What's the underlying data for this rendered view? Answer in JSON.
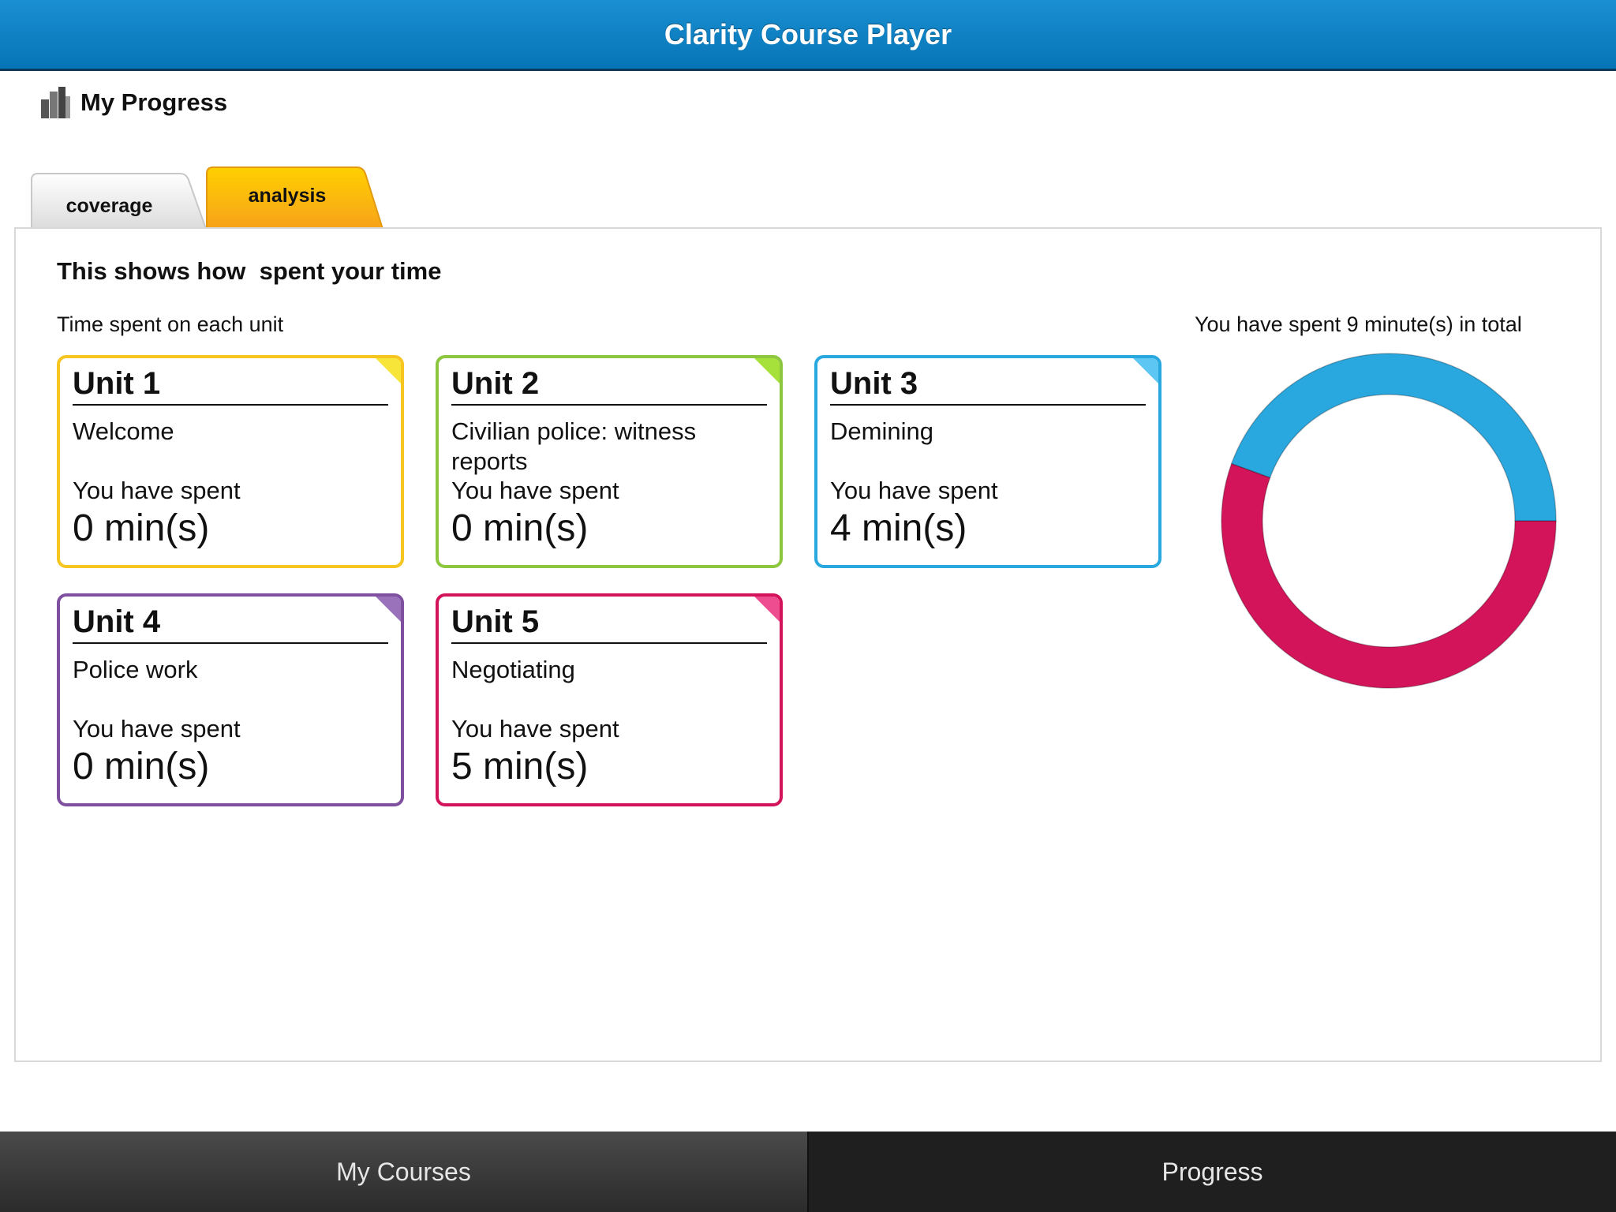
{
  "app": {
    "title": "Clarity Course Player"
  },
  "page": {
    "title": "My Progress",
    "icon": "bar-chart-icon"
  },
  "tabs": [
    {
      "label": "coverage",
      "active": false
    },
    {
      "label": "analysis",
      "active": true
    }
  ],
  "analysis": {
    "heading": "This shows how  spent your time",
    "subheading": "Time spent on each unit",
    "total_label": "You have spent 9 minute(s) in total"
  },
  "units": [
    {
      "title": "Unit 1",
      "name": "Welcome",
      "spent_label": "You have spent",
      "time": "0 min(s)",
      "minutes": 0,
      "color": "#f7c520",
      "corner": "#f7e639"
    },
    {
      "title": "Unit 2",
      "name": "Civilian police: witness reports",
      "spent_label": "You have spent",
      "time": "0 min(s)",
      "minutes": 0,
      "color": "#8dc63f",
      "corner": "#a6e03a"
    },
    {
      "title": "Unit 3",
      "name": "Demining",
      "spent_label": "You have spent",
      "time": "4 min(s)",
      "minutes": 4,
      "color": "#29a8e0",
      "corner": "#5ec6f2"
    },
    {
      "title": "Unit 4",
      "name": "Police work",
      "spent_label": "You have spent",
      "time": "0 min(s)",
      "minutes": 0,
      "color": "#7f4fa0",
      "corner": "#9a72bb"
    },
    {
      "title": "Unit 5",
      "name": "Negotiating",
      "spent_label": "You have spent",
      "time": "5 min(s)",
      "minutes": 5,
      "color": "#d4145a",
      "corner": "#ee4d8f"
    }
  ],
  "chart_data": {
    "type": "pie",
    "categories": [
      "Unit 1",
      "Unit 2",
      "Unit 3",
      "Unit 4",
      "Unit 5"
    ],
    "values": [
      0,
      0,
      4,
      0,
      5
    ],
    "colors": [
      "#f7c520",
      "#8dc63f",
      "#29a8e0",
      "#7f4fa0",
      "#d4145a"
    ],
    "style": "donut",
    "title": "",
    "legend": "none"
  },
  "bottom_nav": [
    {
      "label": "My Courses",
      "active": true
    },
    {
      "label": "Progress",
      "active": false
    }
  ]
}
